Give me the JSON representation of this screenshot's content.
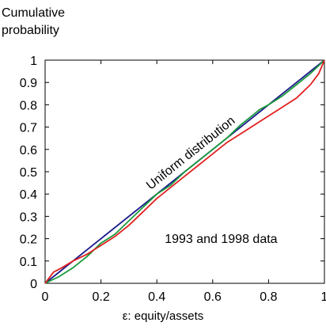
{
  "chart_data": {
    "type": "line",
    "ylabel_line1": "Cumulative",
    "ylabel_line2": "probability",
    "xlabel": "ε: equity/assets",
    "xlim": [
      0,
      1
    ],
    "ylim": [
      0,
      1
    ],
    "x_ticks": [
      {
        "value": 0,
        "label": "0"
      },
      {
        "value": 0.2,
        "label": "0.2"
      },
      {
        "value": 0.4,
        "label": "0.4"
      },
      {
        "value": 0.6,
        "label": "0.6"
      },
      {
        "value": 0.8,
        "label": "0.8"
      },
      {
        "value": 1,
        "label": "1"
      }
    ],
    "y_ticks": [
      {
        "value": 0,
        "label": "0"
      },
      {
        "value": 0.1,
        "label": "0.1"
      },
      {
        "value": 0.2,
        "label": "0.2"
      },
      {
        "value": 0.3,
        "label": "0.3"
      },
      {
        "value": 0.4,
        "label": "0.4"
      },
      {
        "value": 0.5,
        "label": "0.5"
      },
      {
        "value": 0.6,
        "label": "0.6"
      },
      {
        "value": 0.7,
        "label": "0.7"
      },
      {
        "value": 0.8,
        "label": "0.8"
      },
      {
        "value": 0.9,
        "label": "0.9"
      },
      {
        "value": 1,
        "label": "1"
      }
    ],
    "grid": false,
    "series": [
      {
        "color": "#1a1a8c",
        "x": [
          0,
          1
        ],
        "y": [
          0,
          1
        ]
      },
      {
        "color": "#1a9a3c",
        "x": [
          0,
          0.05,
          0.1,
          0.15,
          0.2,
          0.25,
          0.3,
          0.35,
          0.4,
          0.45,
          0.5,
          0.55,
          0.6,
          0.65,
          0.7,
          0.75,
          0.77,
          0.8,
          0.85,
          0.9,
          0.95,
          1.0
        ],
        "y": [
          0,
          0.03,
          0.07,
          0.12,
          0.18,
          0.22,
          0.28,
          0.34,
          0.4,
          0.44,
          0.5,
          0.55,
          0.6,
          0.65,
          0.71,
          0.76,
          0.78,
          0.8,
          0.84,
          0.89,
          0.94,
          1.0
        ]
      },
      {
        "color": "#e02020",
        "x": [
          0,
          0.03,
          0.06,
          0.1,
          0.15,
          0.2,
          0.25,
          0.3,
          0.35,
          0.4,
          0.45,
          0.5,
          0.55,
          0.6,
          0.65,
          0.7,
          0.75,
          0.8,
          0.85,
          0.9,
          0.95,
          0.98,
          1.0
        ],
        "y": [
          0,
          0.05,
          0.07,
          0.1,
          0.13,
          0.17,
          0.21,
          0.26,
          0.32,
          0.38,
          0.43,
          0.48,
          0.53,
          0.58,
          0.63,
          0.67,
          0.71,
          0.75,
          0.79,
          0.83,
          0.89,
          0.94,
          1.0
        ]
      }
    ],
    "annotations": [
      {
        "text": "Uniform distribution",
        "x": 0.53,
        "y": 0.57,
        "rotate_with_diagonal": true
      },
      {
        "text": "1993 and 1998 data",
        "x": 0.63,
        "y": 0.18
      }
    ]
  }
}
